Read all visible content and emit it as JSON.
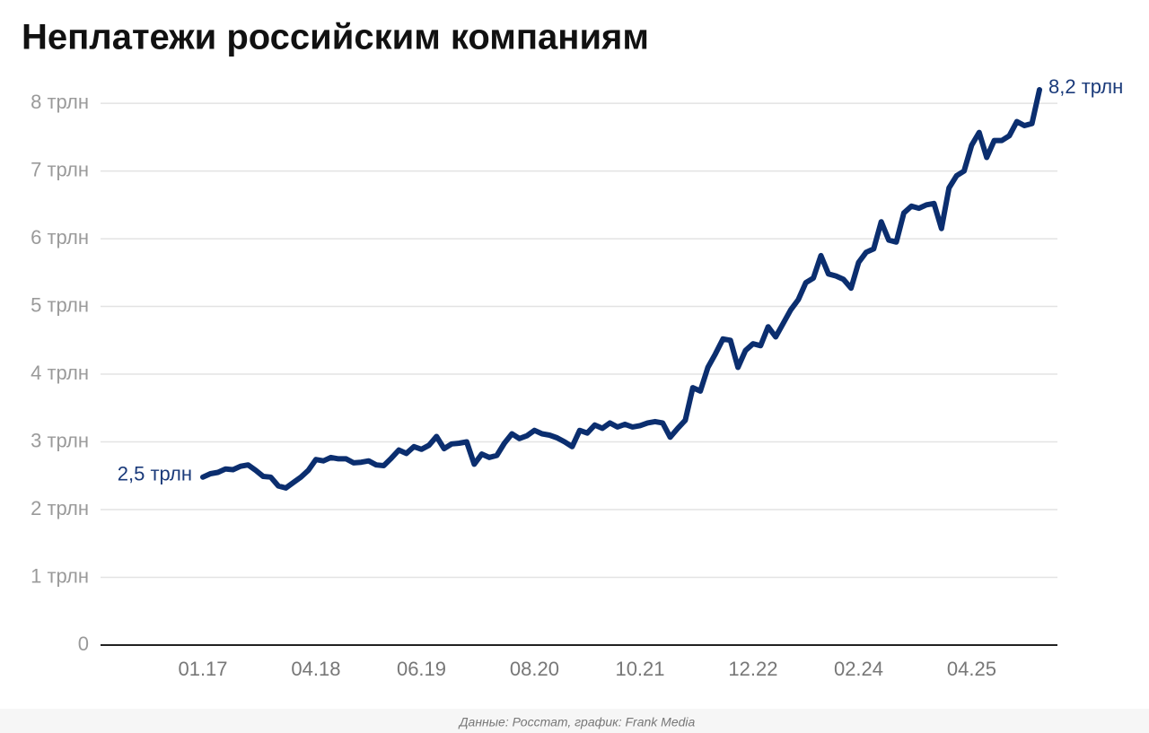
{
  "chart_data": {
    "type": "line",
    "title": "Неплатежи российским компаниям",
    "source": "Данные: Росстат, график: Frank Media",
    "categories": [
      "01.17",
      null,
      null,
      null,
      null,
      null,
      null,
      null,
      null,
      null,
      null,
      null,
      null,
      null,
      null,
      "04.18",
      null,
      null,
      null,
      null,
      null,
      null,
      null,
      null,
      null,
      null,
      null,
      null,
      null,
      "06.19",
      null,
      null,
      null,
      null,
      null,
      null,
      null,
      null,
      null,
      null,
      null,
      null,
      null,
      null,
      "08.20",
      null,
      null,
      null,
      null,
      null,
      null,
      null,
      null,
      null,
      null,
      null,
      null,
      null,
      "10.21",
      null,
      null,
      null,
      null,
      null,
      null,
      null,
      null,
      null,
      null,
      null,
      null,
      null,
      null,
      "12.22",
      null,
      null,
      null,
      null,
      null,
      null,
      null,
      null,
      null,
      null,
      null,
      null,
      null,
      "02.24",
      null,
      null,
      null,
      null,
      null,
      null,
      null,
      null,
      null,
      null,
      null,
      null,
      null,
      null,
      "04.25",
      null,
      null,
      null,
      null,
      null,
      null,
      null,
      null,
      null
    ],
    "values": [
      2.48,
      2.53,
      2.55,
      2.6,
      2.59,
      2.64,
      2.66,
      2.58,
      2.49,
      2.48,
      2.35,
      2.32,
      2.4,
      2.48,
      2.58,
      2.74,
      2.72,
      2.77,
      2.75,
      2.75,
      2.69,
      2.7,
      2.72,
      2.66,
      2.65,
      2.76,
      2.88,
      2.83,
      2.93,
      2.89,
      2.95,
      3.08,
      2.9,
      2.97,
      2.98,
      3.0,
      2.67,
      2.82,
      2.77,
      2.8,
      2.98,
      3.12,
      3.05,
      3.09,
      3.17,
      3.12,
      3.1,
      3.06,
      3.0,
      2.93,
      3.17,
      3.13,
      3.25,
      3.2,
      3.28,
      3.22,
      3.26,
      3.22,
      3.24,
      3.28,
      3.3,
      3.28,
      3.07,
      3.2,
      3.32,
      3.8,
      3.75,
      4.1,
      4.3,
      4.52,
      4.5,
      4.1,
      4.35,
      4.45,
      4.42,
      4.7,
      4.55,
      4.75,
      4.95,
      5.1,
      5.35,
      5.42,
      5.75,
      5.48,
      5.45,
      5.4,
      5.27,
      5.65,
      5.8,
      5.85,
      6.25,
      5.98,
      5.95,
      6.38,
      6.48,
      6.45,
      6.5,
      6.52,
      6.15,
      6.75,
      6.93,
      7.0,
      7.38,
      7.57,
      7.2,
      7.45,
      7.45,
      7.52,
      7.73,
      7.67,
      7.7,
      8.2
    ],
    "value_labels": [
      "2,5 трлн",
      null,
      null,
      null,
      null,
      null,
      null,
      null,
      null,
      null,
      null,
      null,
      null,
      null,
      null,
      null,
      null,
      null,
      null,
      null,
      null,
      null,
      null,
      null,
      null,
      null,
      null,
      null,
      null,
      null,
      null,
      null,
      null,
      null,
      null,
      null,
      null,
      null,
      null,
      null,
      null,
      null,
      null,
      null,
      null,
      null,
      null,
      null,
      null,
      null,
      null,
      null,
      null,
      null,
      null,
      null,
      null,
      null,
      null,
      null,
      null,
      null,
      null,
      null,
      null,
      null,
      null,
      null,
      null,
      null,
      null,
      null,
      null,
      null,
      null,
      null,
      null,
      null,
      null,
      null,
      null,
      null,
      null,
      null,
      null,
      null,
      null,
      null,
      null,
      null,
      null,
      null,
      null,
      null,
      null,
      null,
      null,
      null,
      null,
      null,
      null,
      null,
      null,
      null,
      null,
      null,
      null,
      null,
      null,
      null,
      null,
      "8,2 трлн"
    ],
    "color": "#0b2e6f",
    "ylim": [
      0,
      8.2
    ],
    "yticks": [
      0,
      {
        "value": 1,
        "label": "1 трлн"
      },
      {
        "value": 2,
        "label": "2 трлн"
      },
      {
        "value": 3,
        "label": "3 трлн"
      },
      {
        "value": 4,
        "label": "4 трлн"
      },
      {
        "value": 5,
        "label": "5 трлн"
      },
      {
        "value": 6,
        "label": "6 трлн"
      },
      {
        "value": 7,
        "label": "7 трлн"
      },
      {
        "value": 8,
        "label": "8 трлн"
      }
    ],
    "grid": true
  }
}
